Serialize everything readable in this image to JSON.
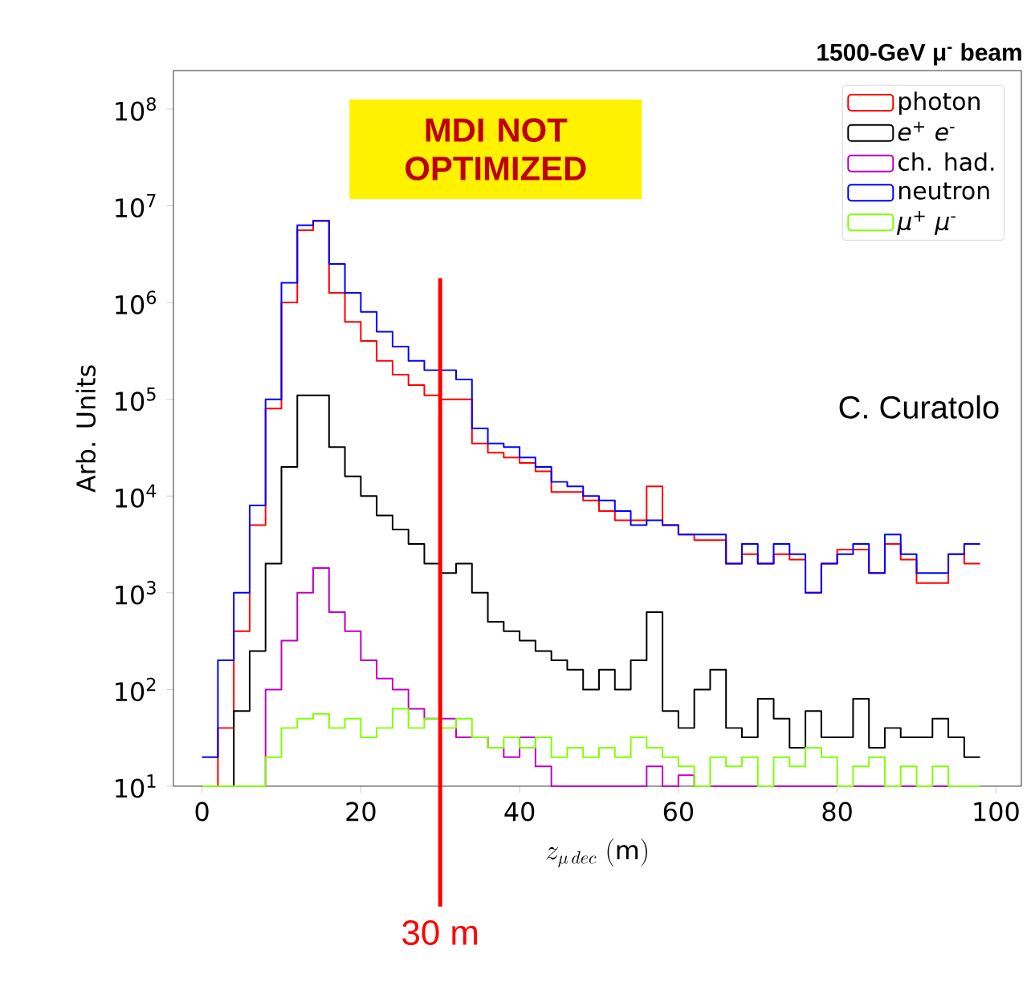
{
  "chart_data": {
    "type": "histogram",
    "title": "1500-GeV μ$^{-}$ beam",
    "xlabel": "z_{\\mu\\,dec}\\ \\mathrm{(m)}",
    "ylabel": "Arb. Units",
    "annotations": [
      "MDI NOT OPTIMIZED",
      "C. Curatolo"
    ],
    "bins": [
      0,
      2,
      4,
      6,
      8,
      10,
      12,
      14,
      16,
      18,
      20,
      22,
      24,
      26,
      28,
      30,
      32,
      34,
      36,
      38,
      40,
      42,
      44,
      46,
      48,
      50,
      52,
      54,
      56,
      58,
      60,
      62,
      64,
      66,
      68,
      70,
      72,
      74,
      76,
      78,
      80,
      82,
      84,
      86,
      88,
      90,
      92,
      94,
      96,
      98
    ],
    "series": [
      {
        "name": "photon",
        "color": "#ff0000",
        "values": [
          null,
          40,
          400,
          5000,
          80000.0,
          1000000.0,
          5600000.0,
          7000000.0,
          1260000.0,
          630000.0,
          400000.0,
          250000.0,
          180000.0,
          140000.0,
          110000.0,
          100000.0,
          100000.0,
          35000.0,
          28000.0,
          25000.0,
          22000.0,
          18000.0,
          11000.0,
          11000.0,
          9000.0,
          7000.0,
          5600.0,
          5600.0,
          12600.0,
          5000.0,
          4000.0,
          3500.0,
          3500.0,
          2000.0,
          2500.0,
          2000.0,
          2500.0,
          2200.0,
          1000.0,
          2000.0,
          2800.0,
          2800.0,
          1600.0,
          3200.0,
          2200.0,
          1260.0,
          1260.0,
          2500.0,
          2000.0
        ]
      },
      {
        "name": "*e*$^{+}$ *e*$^{-}$",
        "color": "#000000",
        "values": [
          null,
          null,
          60,
          250,
          2000,
          20000.0,
          110000.0,
          110000.0,
          32000.0,
          16000.0,
          10000.0,
          6300,
          4500,
          3200,
          2000,
          1600,
          2000,
          1000,
          500,
          400,
          320,
          250,
          200,
          160,
          100,
          160,
          100,
          200,
          630,
          60,
          40,
          100,
          160,
          40,
          32,
          80,
          50,
          25,
          60,
          32,
          32,
          80,
          25,
          40,
          32,
          32,
          50,
          32,
          20
        ]
      },
      {
        "name": "ch. had.",
        "color": "#bf00bf",
        "values": [
          null,
          null,
          null,
          null,
          100,
          320,
          1000,
          1800,
          630,
          400,
          200,
          130,
          100,
          63,
          50,
          50,
          32,
          32,
          25,
          20,
          32,
          16,
          null,
          null,
          null,
          null,
          null,
          null,
          16,
          null,
          13,
          null,
          null,
          null,
          null,
          null,
          null,
          null,
          null,
          null,
          null,
          null,
          null,
          null,
          null,
          null,
          null,
          null,
          null
        ]
      },
      {
        "name": "neutron",
        "color": "#0000ff",
        "values": [
          20,
          200,
          1000,
          8000,
          100000.0,
          1600000.0,
          6300000.0,
          7000000.0,
          2500000.0,
          1260000.0,
          800000.0,
          500000.0,
          350000.0,
          250000.0,
          200000.0,
          200000.0,
          160000.0,
          50000.0,
          35000.0,
          32000.0,
          25000.0,
          20000.0,
          14000.0,
          12600.0,
          10000.0,
          9000.0,
          7000.0,
          5000.0,
          5600.0,
          5000.0,
          4000.0,
          4000.0,
          4000.0,
          2000.0,
          3200.0,
          2000.0,
          3200.0,
          2500.0,
          1000.0,
          2000.0,
          2500.0,
          3200.0,
          1600.0,
          4000.0,
          2500.0,
          1600.0,
          1600.0,
          2500.0,
          3200.0
        ]
      },
      {
        "name": "*μ*$^{+}$ *μ*$^{-}$",
        "color": "#80ff00",
        "values": [
          null,
          null,
          null,
          null,
          20,
          40,
          50,
          56,
          40,
          50,
          32,
          40,
          63,
          40,
          50,
          40,
          50,
          32,
          25,
          32,
          25,
          32,
          20,
          25,
          20,
          25,
          20,
          32,
          25,
          20,
          16,
          null,
          20,
          16,
          20,
          null,
          20,
          16,
          25,
          20,
          null,
          16,
          20,
          null,
          16,
          null,
          16,
          null,
          null
        ]
      }
    ],
    "ref_lines": [
      {
        "axis": "x",
        "value": 30,
        "label": "30 m",
        "color": "#ff0000"
      }
    ],
    "xlim": [
      -3.6,
      103.2
    ],
    "ylim": [
      10,
      250000000.0
    ],
    "xticks": [
      0,
      20,
      40,
      60,
      80,
      100
    ],
    "yticks": [
      {
        "value": 10,
        "label": "10$^{1}$"
      },
      {
        "value": 100,
        "label": "10$^{2}$"
      },
      {
        "value": 1000,
        "label": "10$^{3}$"
      },
      {
        "value": 10000,
        "label": "10$^{4}$"
      },
      {
        "value": 100000,
        "label": "10$^{5}$"
      },
      {
        "value": 1000000,
        "label": "10$^{6}$"
      },
      {
        "value": 10000000,
        "label": "10$^{7}$"
      },
      {
        "value": 100000000,
        "label": "10$^{8}$"
      }
    ],
    "log": "y",
    "legend": "top right"
  }
}
